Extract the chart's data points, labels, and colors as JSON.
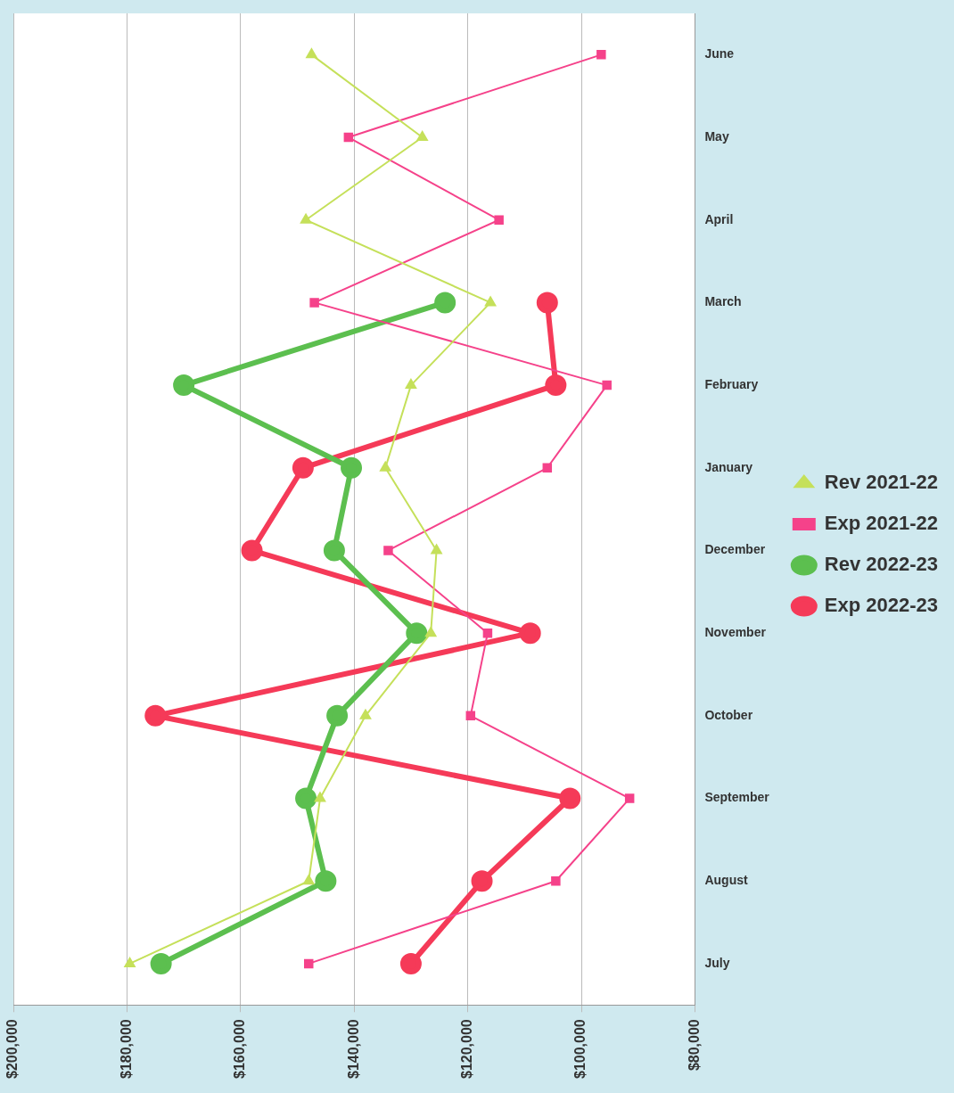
{
  "chart_data": {
    "type": "line",
    "categories": [
      "June",
      "May",
      "April",
      "March",
      "February",
      "January",
      "December",
      "November",
      "October",
      "September",
      "August",
      "July"
    ],
    "series": [
      {
        "name": "Rev 2021-22",
        "color": "#c5e05a",
        "marker": "triangle",
        "values": [
          147500,
          128000,
          148500,
          116000,
          130000,
          134500,
          125500,
          126500,
          138000,
          146000,
          148000,
          179500
        ]
      },
      {
        "name": "Exp 2021-22",
        "color": "#f5428a",
        "marker": "square",
        "values": [
          96500,
          141000,
          114500,
          147000,
          95500,
          106000,
          134000,
          116500,
          119500,
          91500,
          104500,
          148000
        ]
      },
      {
        "name": "Rev 2022-23",
        "color": "#5cbf4f",
        "marker": "circle",
        "values": [
          null,
          null,
          null,
          124000,
          170000,
          140500,
          143500,
          129000,
          143000,
          148500,
          145000,
          174000
        ]
      },
      {
        "name": "Exp 2022-23",
        "color": "#f53a58",
        "marker": "circle",
        "values": [
          null,
          null,
          null,
          106000,
          104500,
          149000,
          158000,
          109000,
          175000,
          102000,
          117500,
          130000
        ]
      }
    ],
    "orientation": "horizontal",
    "xlim": [
      200000,
      80000
    ],
    "xticks": [
      {
        "value": 80000,
        "label": "$80,000"
      },
      {
        "value": 100000,
        "label": "$100,000"
      },
      {
        "value": 120000,
        "label": "$120,000"
      },
      {
        "value": 140000,
        "label": "$140,000"
      },
      {
        "value": 160000,
        "label": "$160,000"
      },
      {
        "value": 180000,
        "label": "$180,000"
      },
      {
        "value": 200000,
        "label": "$200,000"
      }
    ],
    "grid": "x",
    "legend": "right"
  }
}
